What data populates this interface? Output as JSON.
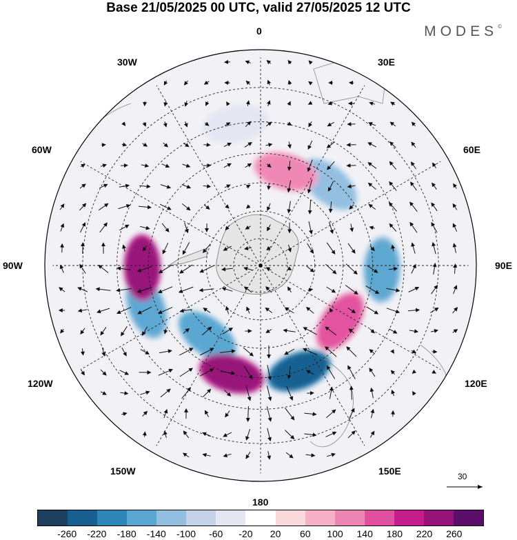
{
  "title": "Base 21/05/2025 00 UTC, valid 27/05/2025 12 UTC",
  "brand": "MODES",
  "brand_mark": "©",
  "longitude_labels": {
    "top": "0",
    "top_left": "30W",
    "top_right": "30E",
    "upper_left": "60W",
    "upper_right": "60E",
    "left": "90W",
    "right": "90E",
    "lower_left": "120W",
    "lower_right": "120E",
    "bottom_left": "150W",
    "bottom_right": "150E",
    "bottom": "180"
  },
  "vector_scale": {
    "label": "30"
  },
  "colorbar": {
    "colors": [
      "#1f3f5e",
      "#185f8f",
      "#2d85b8",
      "#5aa6d1",
      "#92bfe0",
      "#c4d3e8",
      "#e4e6f1",
      "#ffffff",
      "#fbd8dc",
      "#f6b1c8",
      "#ee86b4",
      "#e1509e",
      "#c61d8c",
      "#961479",
      "#5c0f6a"
    ],
    "labels": [
      "-260",
      "-220",
      "-180",
      "-140",
      "-100",
      "-60",
      "-20",
      "20",
      "60",
      "100",
      "140",
      "180",
      "220",
      "260"
    ]
  },
  "map_data": {
    "projection": "south polar stereographic",
    "field": "geopotential height anomaly",
    "anomaly_centers": [
      {
        "lon": -110,
        "lat": -47,
        "value": -160
      },
      {
        "lon": -91,
        "lat": -48,
        "value": 230
      },
      {
        "lon": -143,
        "lat": -58,
        "value": -180
      },
      {
        "lon": -165,
        "lat": -50,
        "value": 240
      },
      {
        "lon": 160,
        "lat": -50,
        "value": -250
      },
      {
        "lon": 125,
        "lat": -55,
        "value": 150
      },
      {
        "lon": 92,
        "lat": -47,
        "value": -160
      },
      {
        "lon": 40,
        "lat": -52,
        "value": -140
      },
      {
        "lon": 15,
        "lat": -55,
        "value": 110
      },
      {
        "lon": -10,
        "lat": -40,
        "value": -60
      }
    ]
  }
}
